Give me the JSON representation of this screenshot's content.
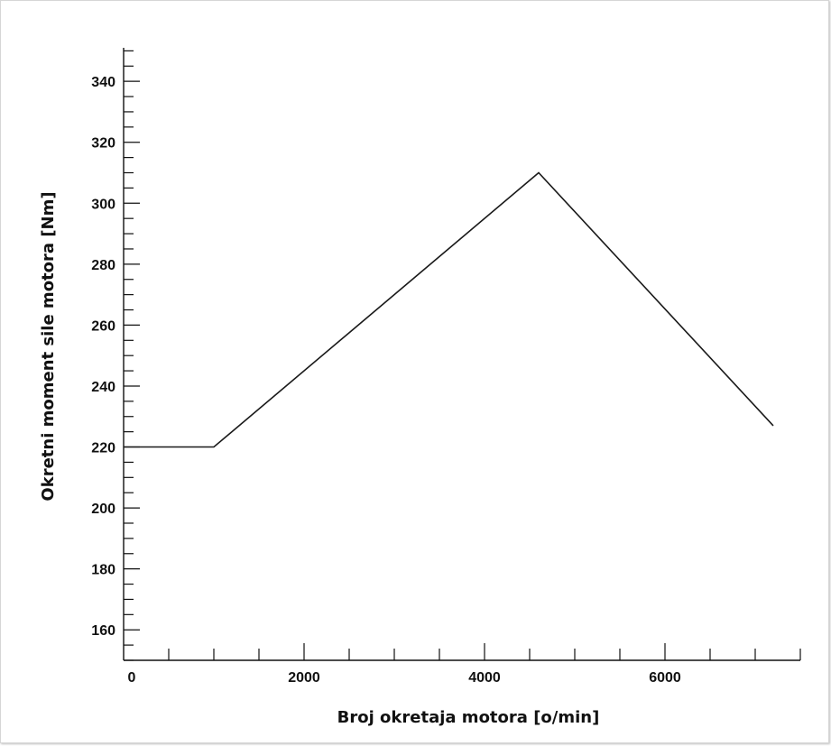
{
  "chart_data": {
    "type": "line",
    "title": "",
    "xlabel": "Broj okretaja motora [o/min]",
    "ylabel": "Okretni moment sile motora [Nm]",
    "xlim": [
      0,
      7500
    ],
    "ylim": [
      150,
      351
    ],
    "x_ticks": [
      0,
      2000,
      4000,
      6000
    ],
    "x_minor_step": 500,
    "y_ticks": [
      160,
      180,
      200,
      220,
      240,
      260,
      280,
      300,
      320,
      340
    ],
    "y_minor_step": 5,
    "grid": false,
    "series": [
      {
        "x": [
          0,
          1000,
          4600,
          7200
        ],
        "y": [
          220,
          220,
          310,
          227
        ]
      }
    ],
    "line_color": "#1a1a1a"
  }
}
